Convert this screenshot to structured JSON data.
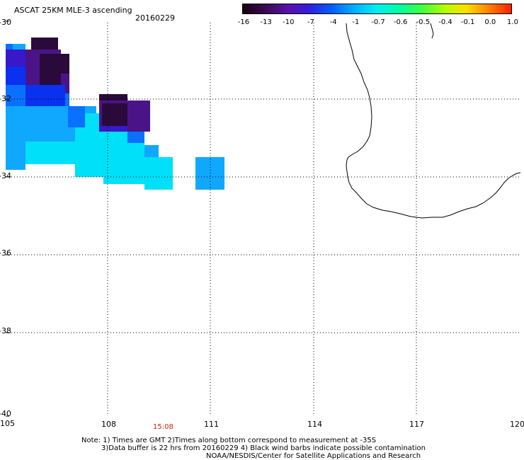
{
  "header": {
    "title": "ASCAT 25KM MLE-3 ascending",
    "date": "20160229"
  },
  "colorbar": {
    "labels": [
      "-16",
      "-13",
      "-10",
      "-7",
      "-4",
      "-1",
      "-0.7",
      "-0.6",
      "-0.5",
      "-0.4",
      "-0.1",
      "0.0",
      "1.0"
    ],
    "colors": [
      "#1a0010",
      "#3a0a50",
      "#5a10a8",
      "#3020e0",
      "#0060ff",
      "#00b0ff",
      "#00f0f0",
      "#00ffa0",
      "#40ff40",
      "#b0ff00",
      "#ffe000",
      "#ff8000",
      "#ff2000"
    ]
  },
  "axes": {
    "x_ticks": [
      "105",
      "108",
      "111",
      "114",
      "117",
      "120"
    ],
    "y_ticks": [
      "-30",
      "-32",
      "-34",
      "-36",
      "-38",
      "-40"
    ]
  },
  "time_label": "15:08",
  "notes": {
    "line1": "Note: 1) Times are GMT 2)Times along bottom correspond to measurement at -35S",
    "line2": "3)Data buffer is 22 hrs from 20160229 4) Black wind barbs indicate possible contamination",
    "line3": "NOAA/NESDIS/Center for Satellite Applications and Research"
  },
  "swath_colors": {
    "dark": "#2a0a3a",
    "purple": "#4a1488",
    "violet": "#3818c8",
    "blue": "#0a30f0",
    "mid_blue": "#0a70ff",
    "light_blue": "#10a8ff",
    "cyan": "#00e0f8"
  }
}
